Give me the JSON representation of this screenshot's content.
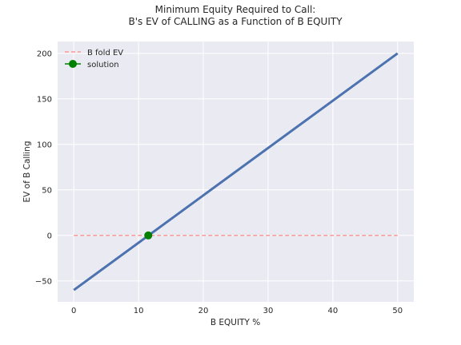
{
  "chart_data": {
    "type": "line",
    "title_line1": "Minimum Equity Required to Call:",
    "title_line2": "B's EV of CALLING as a Function of B EQUITY",
    "xlabel": "B EQUITY %",
    "ylabel": "EV of B Calling",
    "xlim": [
      -2.5,
      52.5
    ],
    "ylim": [
      -73,
      213
    ],
    "xticks": [
      0,
      10,
      20,
      30,
      40,
      50
    ],
    "yticks": [
      -50,
      0,
      50,
      100,
      150,
      200
    ],
    "grid": true,
    "legend_position": "top-left",
    "series": [
      {
        "name": "",
        "style": "solid",
        "color": "#4c72b0",
        "x": [
          0,
          50
        ],
        "y": [
          -60,
          200
        ]
      },
      {
        "name": "B fold EV",
        "style": "dashed",
        "color": "#ff9896",
        "x": [
          0,
          50
        ],
        "y": [
          0,
          0
        ]
      },
      {
        "name": "solution",
        "style": "marker",
        "color": "#008000",
        "x": [
          11.5
        ],
        "y": [
          0
        ]
      }
    ]
  }
}
